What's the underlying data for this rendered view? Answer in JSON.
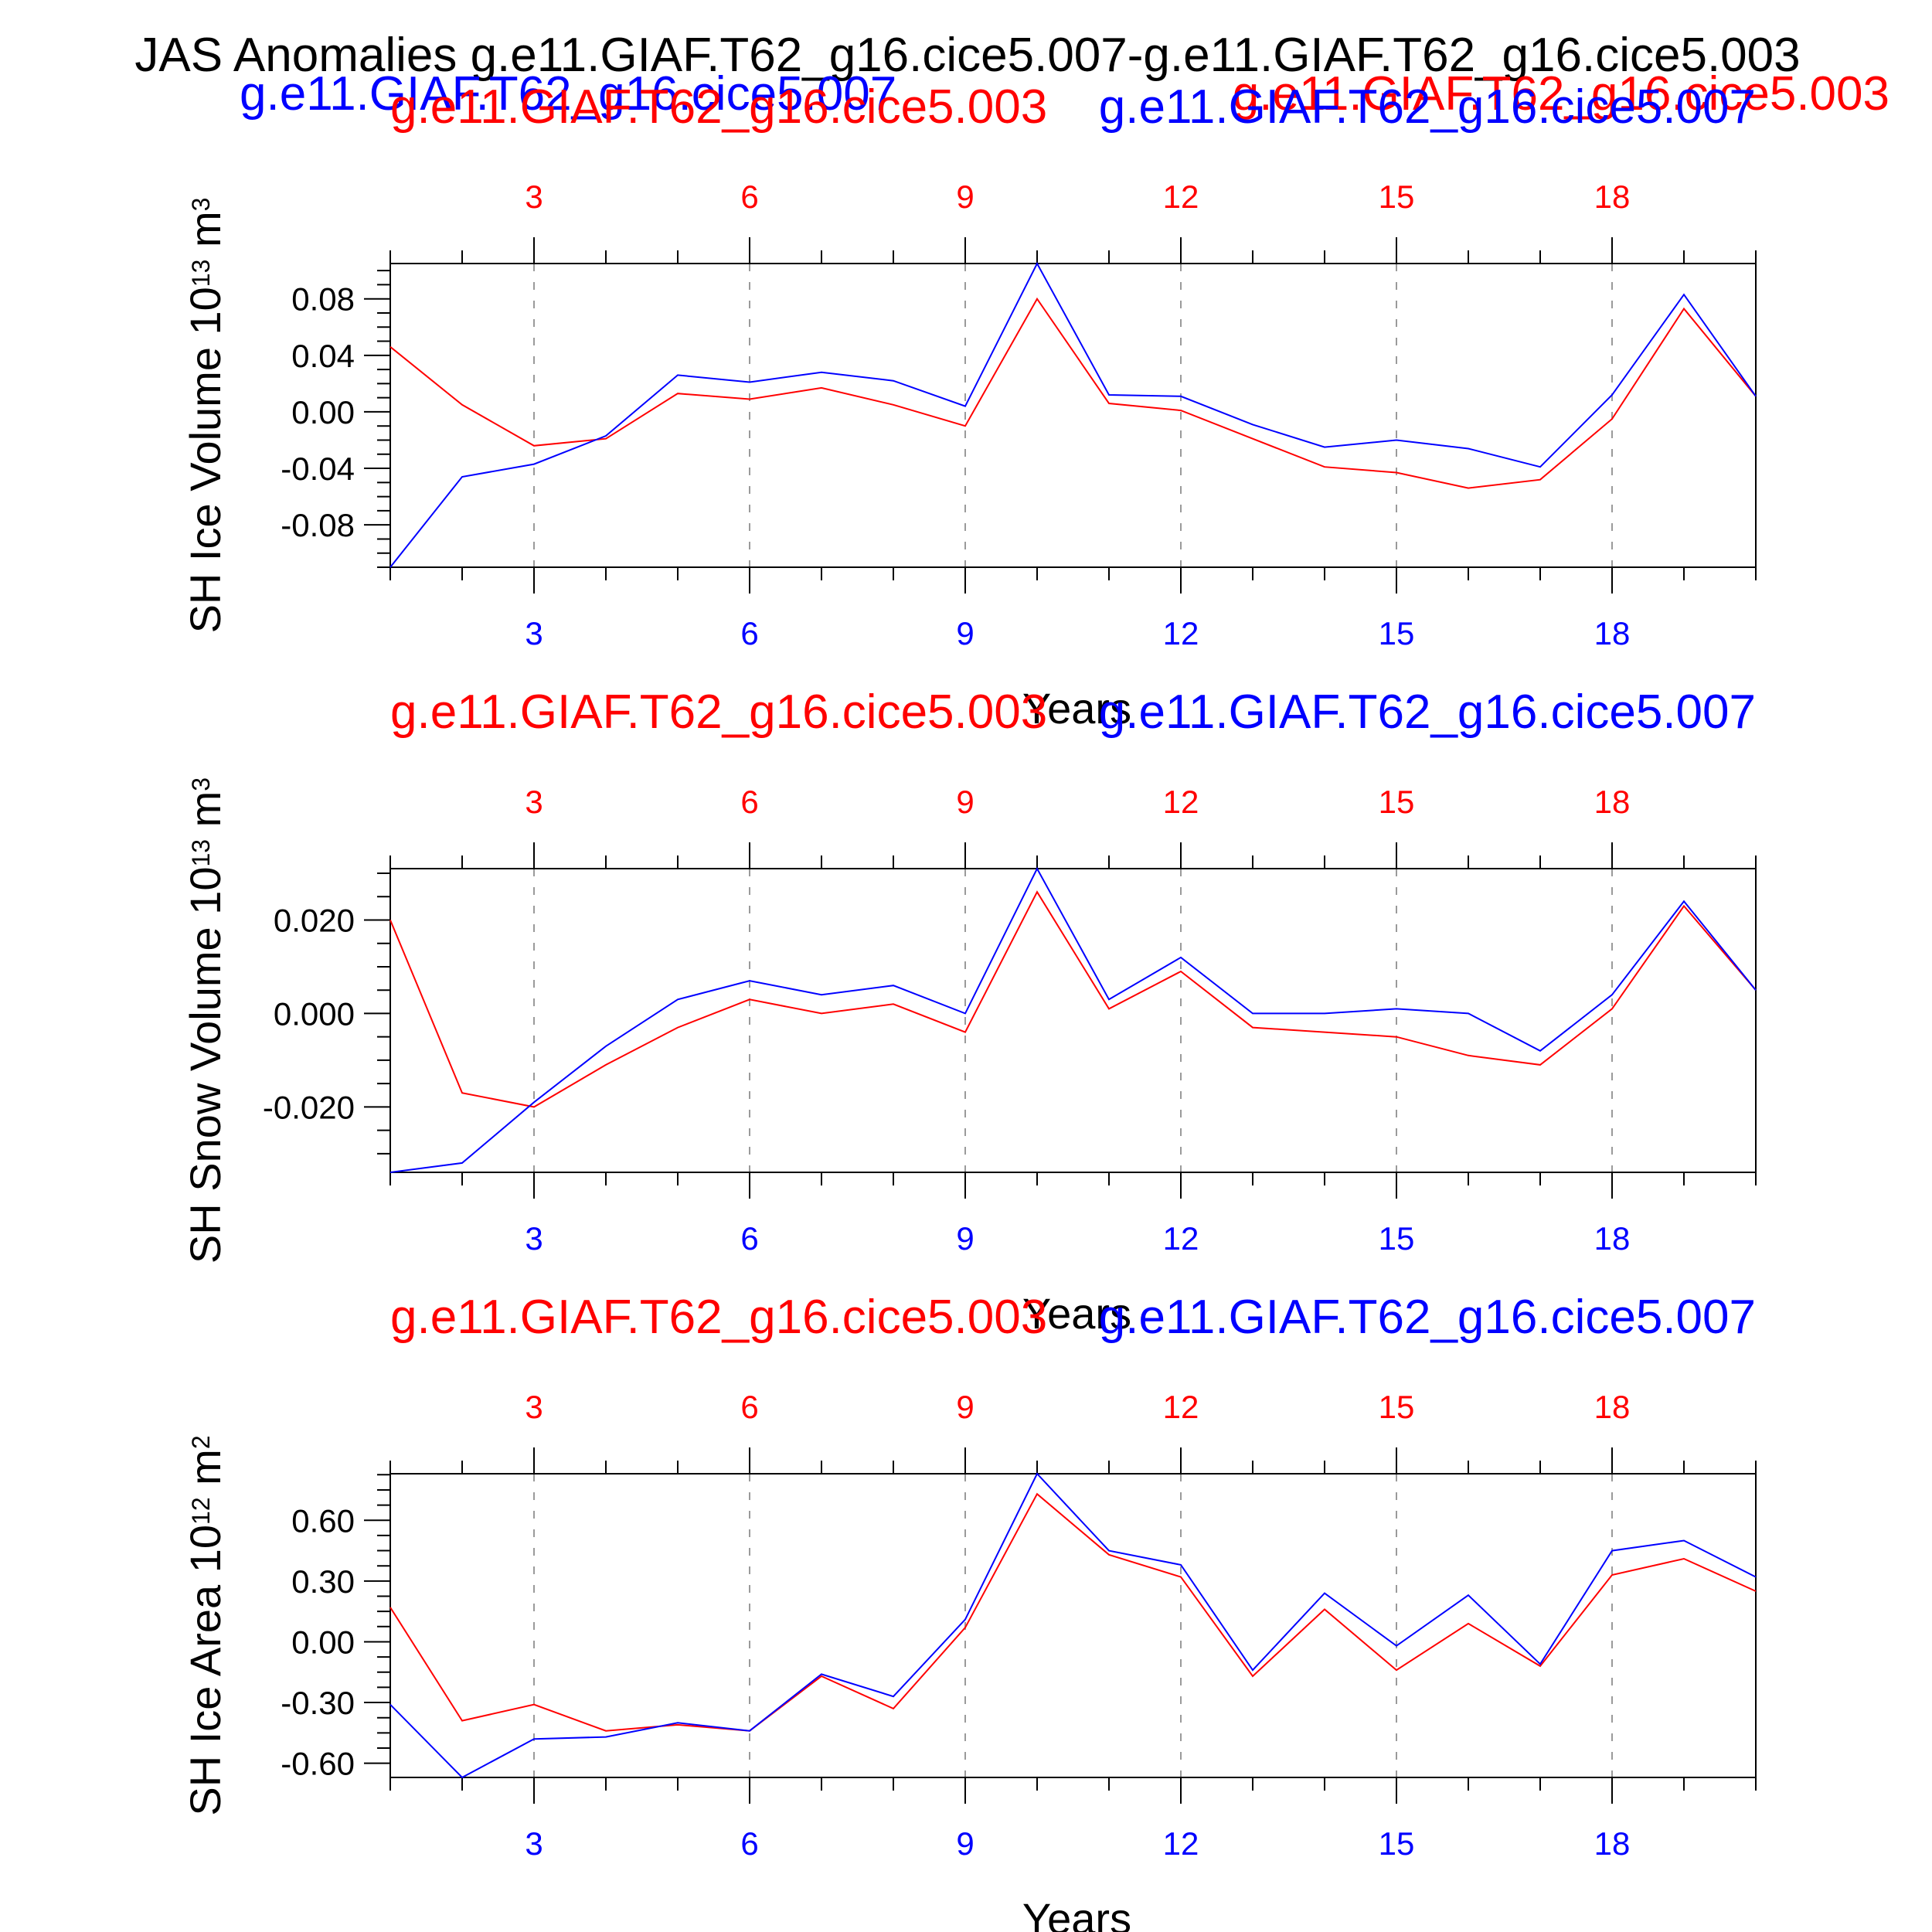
{
  "title": "JAS Anomalies g.e11.GIAF.T62_g16.cice5.007-g.e11.GIAF.T62_g16.cice5.003",
  "header_runs": {
    "left": "g.e11.GIAF.T62_g16.cice5.007",
    "right": "g.e11.GIAF.T62_g16.cice5.003"
  },
  "colors": {
    "run_003": "#ff0000",
    "run_007": "#0000ff",
    "axis": "#000000",
    "grid": "#9a9a9a"
  },
  "chart_data": [
    {
      "type": "line",
      "ylabel_parts": [
        "SH Ice Volume 10",
        "13",
        " m",
        "3"
      ],
      "xlabel": "Years",
      "top_labels": {
        "left": "g.e11.GIAF.T62_g16.cice5.003",
        "right": "g.e11.GIAF.T62_g16.cice5.007"
      },
      "x": [
        1,
        2,
        3,
        4,
        5,
        6,
        7,
        8,
        9,
        10,
        11,
        12,
        13,
        14,
        15,
        16,
        17,
        18,
        19,
        20
      ],
      "xlim": [
        1,
        20
      ],
      "xticks": [
        3,
        6,
        9,
        12,
        15,
        18
      ],
      "ylim": [
        -0.11,
        0.105
      ],
      "yticks": [
        0.08,
        0.04,
        0.0,
        -0.04,
        -0.08
      ],
      "ytick_labels": [
        "0.08",
        "0.04",
        "0.00",
        "-0.04",
        "-0.08"
      ],
      "series": [
        {
          "name": "g.e11.GIAF.T62_g16.cice5.003",
          "color": "#ff0000",
          "values": [
            0.046,
            0.005,
            -0.024,
            -0.019,
            0.013,
            0.009,
            0.017,
            0.005,
            -0.01,
            0.08,
            0.006,
            0.001,
            -0.019,
            -0.039,
            -0.043,
            -0.054,
            -0.048,
            -0.005,
            0.073,
            0.011
          ]
        },
        {
          "name": "g.e11.GIAF.T62_g16.cice5.007",
          "color": "#0000ff",
          "values": [
            -0.11,
            -0.046,
            -0.037,
            -0.017,
            0.026,
            0.021,
            0.028,
            0.022,
            0.004,
            0.105,
            0.012,
            0.011,
            -0.009,
            -0.025,
            -0.02,
            -0.026,
            -0.039,
            0.012,
            0.083,
            0.011
          ]
        }
      ]
    },
    {
      "type": "line",
      "ylabel_parts": [
        "SH Snow Volume 10",
        "13",
        " m",
        "3"
      ],
      "xlabel": "Years",
      "top_labels": {
        "left": "g.e11.GIAF.T62_g16.cice5.003",
        "right": "g.e11.GIAF.T62_g16.cice5.007"
      },
      "x": [
        1,
        2,
        3,
        4,
        5,
        6,
        7,
        8,
        9,
        10,
        11,
        12,
        13,
        14,
        15,
        16,
        17,
        18,
        19,
        20
      ],
      "xlim": [
        1,
        20
      ],
      "xticks": [
        3,
        6,
        9,
        12,
        15,
        18
      ],
      "ylim": [
        -0.034,
        0.031
      ],
      "yticks": [
        0.02,
        0.0,
        -0.02
      ],
      "ytick_labels": [
        "0.020",
        "0.000",
        "-0.020"
      ],
      "series": [
        {
          "name": "g.e11.GIAF.T62_g16.cice5.003",
          "color": "#ff0000",
          "values": [
            0.02,
            -0.017,
            -0.02,
            -0.011,
            -0.003,
            0.003,
            0.0,
            0.002,
            -0.004,
            0.026,
            0.001,
            0.009,
            -0.003,
            -0.004,
            -0.005,
            -0.009,
            -0.011,
            0.001,
            0.023,
            0.005
          ]
        },
        {
          "name": "g.e11.GIAF.T62_g16.cice5.007",
          "color": "#0000ff",
          "values": [
            -0.034,
            -0.032,
            -0.019,
            -0.007,
            0.003,
            0.007,
            0.004,
            0.006,
            0.0,
            0.031,
            0.003,
            0.012,
            0.0,
            0.0,
            0.001,
            0.0,
            -0.008,
            0.004,
            0.024,
            0.005
          ]
        }
      ]
    },
    {
      "type": "line",
      "ylabel_parts": [
        "SH Ice Area 10",
        "12",
        " m",
        "2"
      ],
      "xlabel": "Years",
      "top_labels": {
        "left": "g.e11.GIAF.T62_g16.cice5.003",
        "right": "g.e11.GIAF.T62_g16.cice5.007"
      },
      "x": [
        1,
        2,
        3,
        4,
        5,
        6,
        7,
        8,
        9,
        10,
        11,
        12,
        13,
        14,
        15,
        16,
        17,
        18,
        19,
        20
      ],
      "xlim": [
        1,
        20
      ],
      "xticks": [
        3,
        6,
        9,
        12,
        15,
        18
      ],
      "ylim": [
        -0.67,
        0.83
      ],
      "yticks": [
        0.6,
        0.3,
        0.0,
        -0.3,
        -0.6
      ],
      "ytick_labels": [
        "0.60",
        "0.30",
        "0.00",
        "-0.30",
        "-0.60"
      ],
      "series": [
        {
          "name": "g.e11.GIAF.T62_g16.cice5.003",
          "color": "#ff0000",
          "values": [
            0.17,
            -0.39,
            -0.31,
            -0.44,
            -0.41,
            -0.44,
            -0.17,
            -0.33,
            0.07,
            0.73,
            0.43,
            0.32,
            -0.17,
            0.16,
            -0.14,
            0.09,
            -0.12,
            0.33,
            0.41,
            0.25
          ]
        },
        {
          "name": "g.e11.GIAF.T62_g16.cice5.007",
          "color": "#0000ff",
          "values": [
            -0.31,
            -0.67,
            -0.48,
            -0.47,
            -0.4,
            -0.44,
            -0.16,
            -0.27,
            0.11,
            0.83,
            0.45,
            0.38,
            -0.14,
            0.24,
            -0.02,
            0.23,
            -0.11,
            0.45,
            0.5,
            0.32
          ]
        }
      ]
    }
  ]
}
